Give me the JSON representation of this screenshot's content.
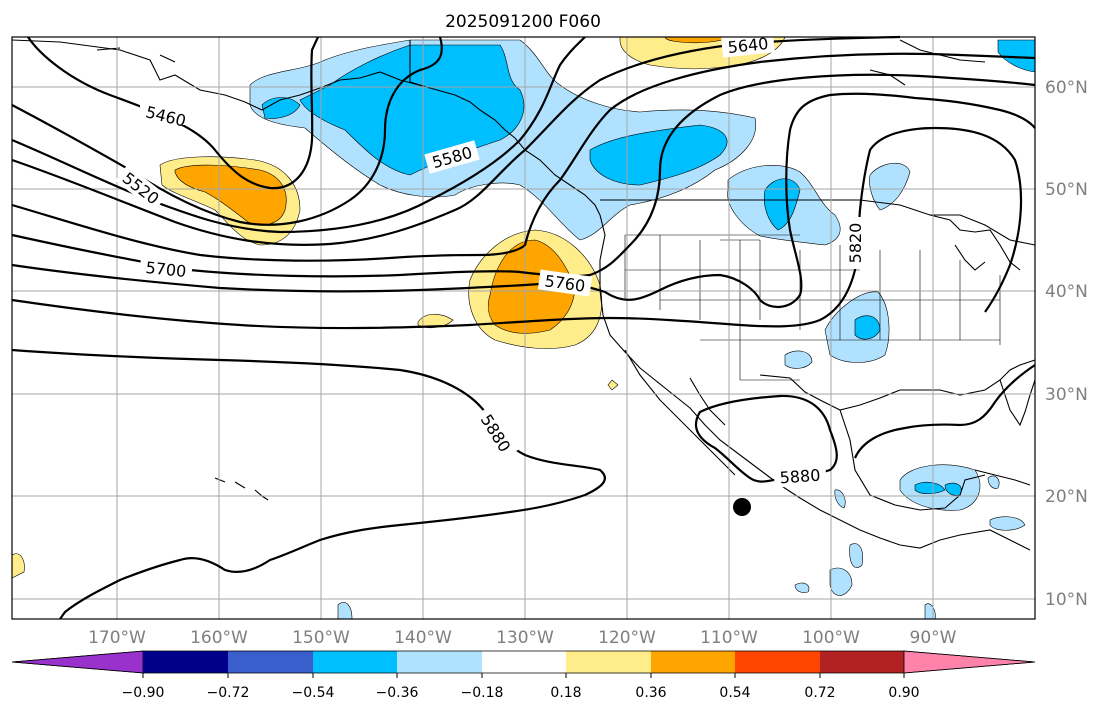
{
  "title": "2025091200 F060",
  "map": {
    "lon_labels": [
      "170°W",
      "160°W",
      "150°W",
      "140°W",
      "130°W",
      "120°W",
      "110°W",
      "100°W",
      "90°W"
    ],
    "lat_labels": [
      "60°N",
      "50°N",
      "40°N",
      "30°N",
      "20°N",
      "10°N"
    ],
    "contour_labels": [
      "5460",
      "5520",
      "5580",
      "5640",
      "5700",
      "5760",
      "5820",
      "5880",
      "5880"
    ],
    "marker": "storm-position-dot"
  },
  "colorbar": {
    "ticks": [
      "−0.90",
      "−0.72",
      "−0.54",
      "−0.36",
      "−0.18",
      "0.18",
      "0.36",
      "0.54",
      "0.72",
      "0.90"
    ],
    "colors": [
      "#9932cc",
      "#00008b",
      "#3a5fcd",
      "#00bfff",
      "#b0e2ff",
      "#ffffff",
      "#ffec8b",
      "#ffa500",
      "#ff4500",
      "#b22222",
      "#ff82ab"
    ]
  },
  "colors": {
    "neg_light": "#b0e2ff",
    "neg_mid": "#00bfff",
    "pos_light": "#ffec8b",
    "pos_mid": "#ffa500",
    "contour": "#000000",
    "grid": "#a6a6a6"
  }
}
